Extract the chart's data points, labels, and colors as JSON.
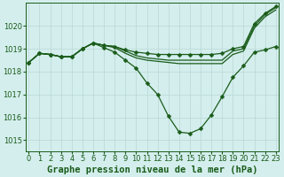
{
  "title": "Graphe pression niveau de la mer (hPa)",
  "background_color": "#d4eeed",
  "line_color": "#1a5c1a",
  "grid_color": "#b8d8d4",
  "ylim": [
    1014.5,
    1021.0
  ],
  "xlim": [
    -0.3,
    23.3
  ],
  "yticks": [
    1015,
    1016,
    1017,
    1018,
    1019,
    1020
  ],
  "xticks": [
    0,
    1,
    2,
    3,
    4,
    5,
    6,
    7,
    8,
    9,
    10,
    11,
    12,
    13,
    14,
    15,
    16,
    17,
    18,
    19,
    20,
    21,
    22,
    23
  ],
  "series": [
    {
      "x": [
        0,
        1,
        2,
        3,
        4,
        5,
        6,
        7,
        8,
        9,
        10,
        11,
        12,
        13,
        14,
        15,
        16,
        17,
        18,
        19,
        20,
        21,
        22,
        23
      ],
      "y": [
        1018.4,
        1018.8,
        1018.75,
        1018.65,
        1018.65,
        1019.0,
        1019.25,
        1019.15,
        1019.1,
        1018.95,
        1018.85,
        1018.8,
        1018.75,
        1018.75,
        1018.75,
        1018.75,
        1018.75,
        1018.75,
        1018.8,
        1019.0,
        1019.1,
        1020.1,
        1020.55,
        1020.85
      ],
      "marker": true
    },
    {
      "x": [
        0,
        1,
        2,
        3,
        4,
        5,
        6,
        7,
        8,
        9,
        10,
        11,
        12,
        13,
        14,
        15,
        16,
        17,
        18,
        19,
        20,
        21,
        22,
        23
      ],
      "y": [
        1018.4,
        1018.8,
        1018.75,
        1018.65,
        1018.65,
        1019.0,
        1019.25,
        1019.15,
        1019.1,
        1018.9,
        1018.7,
        1018.6,
        1018.55,
        1018.5,
        1018.5,
        1018.5,
        1018.5,
        1018.5,
        1018.5,
        1018.9,
        1019.0,
        1020.0,
        1020.5,
        1020.8
      ],
      "marker": false
    },
    {
      "x": [
        0,
        1,
        2,
        3,
        4,
        5,
        6,
        7,
        8,
        9,
        10,
        11,
        12,
        13,
        14,
        15,
        16,
        17,
        18,
        19,
        20,
        21,
        22,
        23
      ],
      "y": [
        1018.4,
        1018.8,
        1018.75,
        1018.65,
        1018.65,
        1019.0,
        1019.25,
        1019.15,
        1019.05,
        1018.8,
        1018.6,
        1018.5,
        1018.45,
        1018.4,
        1018.35,
        1018.35,
        1018.35,
        1018.35,
        1018.35,
        1018.75,
        1018.9,
        1019.9,
        1020.4,
        1020.7
      ],
      "marker": false
    },
    {
      "x": [
        0,
        1,
        2,
        3,
        4,
        5,
        6,
        7,
        8,
        9,
        10,
        11,
        12,
        13,
        14,
        15,
        16,
        17,
        18,
        19,
        20,
        21,
        22,
        23
      ],
      "y": [
        1018.4,
        1018.8,
        1018.75,
        1018.65,
        1018.65,
        1019.0,
        1019.25,
        1019.05,
        1018.85,
        1018.5,
        1018.15,
        1017.5,
        1017.0,
        1016.05,
        1015.35,
        1015.3,
        1015.5,
        1016.1,
        1016.9,
        1017.75,
        1018.25,
        1018.85,
        1018.95,
        1019.1
      ],
      "marker": true
    }
  ],
  "markersize": 2.5,
  "linewidth": 0.9,
  "title_fontsize": 7.5,
  "tick_fontsize": 6.0
}
